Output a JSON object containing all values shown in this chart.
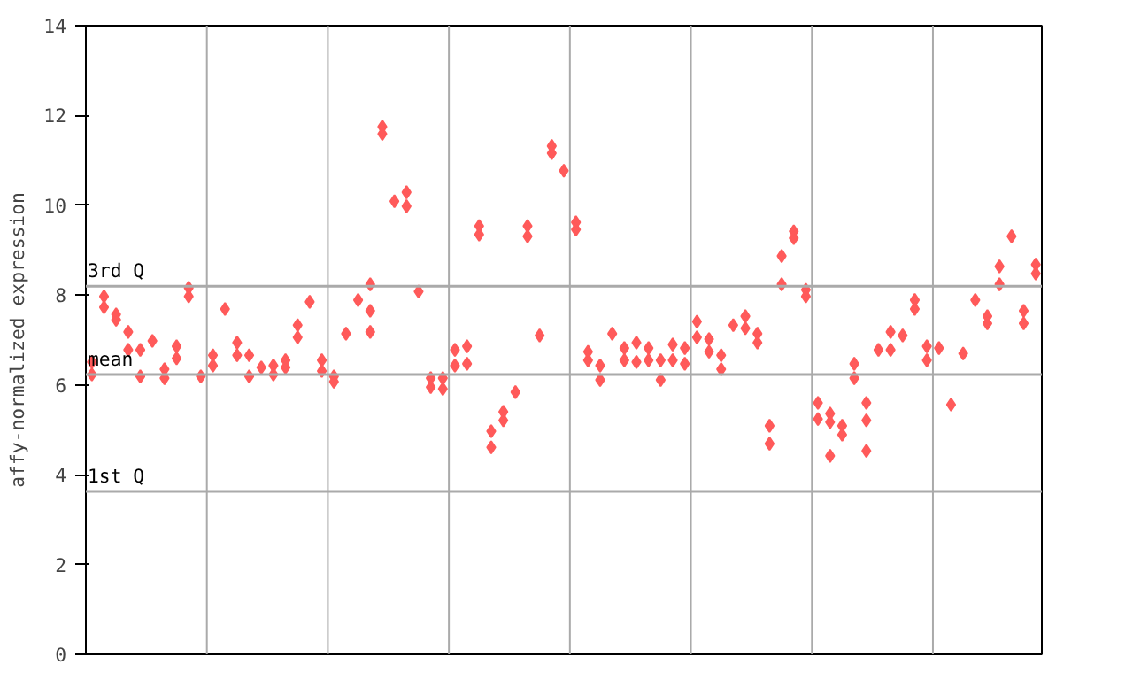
{
  "chart_data": {
    "type": "scatter",
    "ylabel": "affy-normalized expression",
    "marker": "diamond",
    "grid": "x",
    "tick_labels": "y",
    "categories": [
      null,
      null,
      null,
      null,
      null,
      null,
      null,
      null,
      null,
      null,
      null,
      null,
      null,
      null,
      null,
      null,
      null,
      null,
      null,
      null,
      null,
      null,
      null,
      null,
      null,
      null,
      null,
      null,
      null,
      null,
      null,
      null,
      null,
      null,
      null,
      null,
      null,
      null,
      null,
      null,
      null,
      null,
      null,
      null,
      null,
      null,
      null,
      null,
      null,
      null,
      null,
      null,
      null,
      null,
      null,
      null,
      null,
      null,
      null,
      null,
      null,
      null,
      null,
      null,
      null,
      null,
      null,
      null,
      null,
      null,
      null,
      null,
      null,
      null,
      null,
      null,
      null,
      null,
      null
    ],
    "ylim": [
      0,
      14
    ],
    "yticks": [
      0,
      2,
      4,
      6,
      8,
      10,
      12,
      14
    ],
    "ref_lines": [
      {
        "axis": "y",
        "value": 8.2,
        "label": "3rd Q",
        "color": "#aaaaaa"
      },
      {
        "axis": "y",
        "value": 6.23,
        "label": "mean",
        "color": "#aaaaaa"
      },
      {
        "axis": "y",
        "value": 3.63,
        "label": "1st Q",
        "color": "#aaaaaa"
      }
    ],
    "series": [
      {
        "color": "#ff5a5a",
        "values": [
          6.51,
          7.97,
          7.57,
          7.18,
          6.78,
          6.98,
          6.35,
          6.86,
          8.16,
          6.19,
          6.66,
          7.69,
          6.94,
          6.66,
          6.39,
          6.43,
          6.55,
          7.33,
          7.85,
          6.55,
          6.19,
          7.14,
          7.89,
          8.24,
          11.75,
          10.09,
          10.29,
          8.08,
          6.15,
          6.15,
          6.78,
          6.86,
          9.54,
          4.97,
          5.4,
          5.84,
          9.54,
          7.1,
          11.32,
          10.77,
          9.62,
          6.74,
          6.43,
          7.14,
          6.82,
          6.94,
          6.82,
          6.55,
          6.9,
          6.82,
          7.41,
          7.02,
          6.66,
          7.33,
          7.53,
          7.14,
          5.09,
          8.87,
          9.42,
          8.12,
          5.6,
          5.36,
          5.09,
          6.47,
          5.6,
          6.78,
          7.18,
          7.1,
          7.89,
          6.86,
          6.82,
          5.56,
          6.7,
          7.89,
          7.53,
          8.64,
          9.31,
          7.65,
          8.68
        ]
      },
      {
        "color": "#ff5a5a",
        "values": [
          6.23,
          7.73,
          7.45,
          6.78,
          6.19,
          null,
          6.15,
          6.59,
          7.97,
          null,
          6.43,
          null,
          6.66,
          6.19,
          null,
          6.23,
          6.39,
          7.06,
          null,
          6.31,
          6.07,
          null,
          null,
          7.65,
          11.59,
          null,
          9.98,
          null,
          5.95,
          5.91,
          6.43,
          6.47,
          9.35,
          4.61,
          5.21,
          null,
          9.31,
          null,
          11.16,
          null,
          9.46,
          6.55,
          6.11,
          null,
          6.55,
          6.51,
          6.55,
          6.11,
          6.55,
          6.47,
          7.06,
          6.74,
          6.35,
          null,
          7.26,
          6.94,
          4.69,
          8.24,
          9.27,
          7.97,
          5.24,
          5.17,
          4.89,
          6.15,
          5.21,
          null,
          6.78,
          null,
          7.69,
          6.55,
          null,
          null,
          null,
          null,
          7.37,
          8.24,
          null,
          7.37,
          8.48
        ]
      },
      {
        "color": "#ff5a5a",
        "values": [
          null,
          null,
          null,
          null,
          null,
          null,
          null,
          null,
          null,
          null,
          null,
          null,
          null,
          null,
          null,
          null,
          null,
          null,
          null,
          null,
          null,
          null,
          null,
          7.18,
          null,
          null,
          null,
          null,
          null,
          null,
          null,
          null,
          null,
          null,
          null,
          null,
          null,
          null,
          null,
          null,
          null,
          null,
          null,
          null,
          null,
          null,
          null,
          null,
          null,
          null,
          null,
          null,
          null,
          null,
          null,
          null,
          null,
          null,
          null,
          null,
          null,
          4.42,
          null,
          null,
          4.53,
          null,
          null,
          null,
          null,
          null,
          null,
          null,
          null,
          null,
          null,
          null,
          null,
          null,
          null
        ]
      }
    ]
  }
}
